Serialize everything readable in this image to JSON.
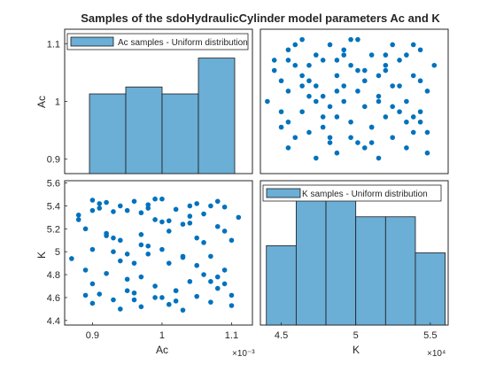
{
  "title": "Samples of the sdoHydraulicCylinder model parameters Ac and K",
  "colors": {
    "bar_fill": "#6baed6",
    "bar_edge": "#1a1a1a",
    "marker": "#0072bd",
    "axes": "#262626",
    "background": "#ffffff"
  },
  "chart_data": [
    {
      "id": "hist-ac",
      "type": "bar",
      "title": "",
      "xlabel": "",
      "ylabel": "Ac",
      "bin_edges": [
        0.0009,
        0.00095,
        0.001,
        0.00105,
        0.0011
      ],
      "values": [
        1.013,
        1.025,
        1.013,
        1.075
      ],
      "ylim": [
        0.875,
        1.125
      ],
      "yticks": [
        "0.9",
        "1",
        "1.1"
      ],
      "legend": "Ac samples - Uniform distribution",
      "legend_position": "top-left",
      "grid": false
    },
    {
      "id": "scatter-ac-k",
      "type": "scatter",
      "title": "",
      "xlabel": "",
      "ylabel": "",
      "xlim": [
        0.00086,
        0.00113
      ],
      "ylim": [
        0.86,
        1.14
      ],
      "grid": false,
      "x": [
        0.00088,
        0.00089,
        0.0009,
        0.0009,
        0.0009,
        0.00091,
        0.00092,
        0.00092,
        0.00093,
        0.00093,
        0.00094,
        0.00094,
        0.00095,
        0.00095,
        0.00096,
        0.00096,
        0.00097,
        0.00097,
        0.00097,
        0.00098,
        0.00098,
        0.00099,
        0.00099,
        0.001,
        0.001,
        0.00101,
        0.00101,
        0.00102,
        0.00102,
        0.00103,
        0.00103,
        0.00104,
        0.00104,
        0.00105,
        0.00105,
        0.00106,
        0.00106,
        0.00107,
        0.00107,
        0.00108,
        0.00108,
        0.00109,
        0.00109,
        0.0011,
        0.0011,
        0.00111,
        0.00087,
        0.00089,
        0.00091,
        0.00093,
        0.00095,
        0.00097,
        0.00099,
        0.00101,
        0.00103,
        0.00105,
        0.00107,
        0.00109,
        0.00088,
        0.0009,
        0.00092,
        0.00094,
        0.00096,
        0.00098,
        0.001,
        0.00102,
        0.00104,
        0.00106,
        0.00108,
        0.0011,
        0.00089,
        0.00091,
        0.00093,
        0.00095,
        0.00097,
        0.00099,
        0.00101,
        0.00103,
        0.00105,
        0.00107,
        0.00109,
        0.00092,
        0.00096,
        0.001,
        0.00104,
        0.00108,
        0.0009,
        0.00094,
        0.00098,
        0.00102
      ],
      "y": [
        1.06,
        0.95,
        1.1,
        1.02,
        0.91,
        1.07,
        0.98,
        1.12,
        0.94,
        1.04,
        1.09,
        0.89,
        1.01,
        1.08,
        0.93,
        1.11,
        0.97,
        1.05,
        0.9,
        1.03,
        1.1,
        0.96,
        1.07,
        0.92,
        1.12,
        0.99,
        1.04,
        0.95,
        1.09,
        1.01,
        0.89,
        1.06,
        0.97,
        1.11,
        0.93,
        1.03,
        1.08,
        0.91,
        1.0,
        1.05,
        0.94,
        1.1,
        0.98,
        1.02,
        0.9,
        1.07,
        1.0,
        1.04,
        0.93,
        1.07,
        0.97,
        1.02,
        1.12,
        0.91,
        1.05,
        0.99,
        1.09,
        0.96,
        1.08,
        0.96,
        1.05,
        1.0,
        0.92,
        1.09,
        1.02,
        0.95,
        1.07,
        0.98,
        1.11,
        0.94,
        0.98,
        1.11,
        1.01,
        0.95,
        1.08,
        0.93,
        1.06,
        1.0,
        1.03,
        0.96,
        1.04,
        1.03,
        0.99,
        1.06,
        1.09,
        0.97,
        1.08,
        1.03,
        1.0,
        0.92
      ]
    },
    {
      "id": "scatter-k-ac",
      "type": "scatter",
      "title": "",
      "xlabel": "Ac",
      "ylabel": "K",
      "x_exponent": "×10⁻³",
      "xlim": [
        0.00086,
        0.00113
      ],
      "ylim": [
        4.36,
        5.62
      ],
      "xticks": [
        0.0009,
        0.001,
        0.0011
      ],
      "xticklabels": [
        "0.9",
        "1",
        "1.1"
      ],
      "yticks": [
        4.4,
        4.6,
        4.8,
        5,
        5.2,
        5.4,
        5.6
      ],
      "yticklabels": [
        "4.4",
        "4.6",
        "4.8",
        "5",
        "5.2",
        "5.4",
        "5.6"
      ],
      "grid": false,
      "x": [
        0.00088,
        0.00089,
        0.0009,
        0.0009,
        0.0009,
        0.00091,
        0.00092,
        0.00092,
        0.00093,
        0.00093,
        0.00094,
        0.00094,
        0.00095,
        0.00095,
        0.00096,
        0.00096,
        0.00097,
        0.00097,
        0.00097,
        0.00098,
        0.00098,
        0.00099,
        0.00099,
        0.001,
        0.001,
        0.00101,
        0.00101,
        0.00102,
        0.00102,
        0.00103,
        0.00103,
        0.00104,
        0.00104,
        0.00105,
        0.00105,
        0.00106,
        0.00106,
        0.00107,
        0.00107,
        0.00108,
        0.00108,
        0.00109,
        0.00109,
        0.0011,
        0.0011,
        0.00111,
        0.00087,
        0.00089,
        0.00091,
        0.00093,
        0.00095,
        0.00097,
        0.00099,
        0.00101,
        0.00103,
        0.00105,
        0.00107,
        0.00109,
        0.00088,
        0.0009,
        0.00092,
        0.00094,
        0.00096,
        0.00098,
        0.001,
        0.00102,
        0.00104,
        0.00106,
        0.00108,
        0.0011,
        0.00089,
        0.00091,
        0.00093,
        0.00095,
        0.00097,
        0.00099,
        0.00101,
        0.00103,
        0.00105,
        0.00107,
        0.00109,
        0.00092,
        0.00096,
        0.001,
        0.00104,
        0.00108,
        0.0009,
        0.00094,
        0.00098,
        0.00102
      ],
      "y": [
        5.32,
        4.62,
        5.45,
        5.02,
        4.55,
        5.38,
        4.81,
        5.43,
        4.58,
        5.12,
        5.4,
        4.5,
        4.98,
        5.36,
        4.64,
        5.44,
        4.78,
        5.15,
        4.52,
        5.05,
        5.41,
        4.7,
        5.28,
        4.6,
        5.46,
        4.9,
        5.18,
        4.66,
        5.37,
        4.95,
        4.49,
        5.25,
        4.74,
        5.42,
        4.61,
        5.08,
        5.33,
        4.56,
        4.96,
        5.22,
        4.68,
        5.39,
        4.84,
        5.1,
        4.53,
        5.3,
        4.94,
        5.2,
        4.63,
        5.35,
        4.76,
        5.06,
        5.46,
        4.54,
        5.24,
        4.88,
        5.4,
        4.72,
        5.28,
        4.72,
        5.14,
        4.92,
        4.58,
        5.38,
        5.02,
        4.66,
        5.31,
        4.8,
        5.44,
        4.62,
        4.84,
        5.42,
        5.0,
        4.66,
        5.34,
        4.6,
        5.27,
        4.96,
        5.12,
        4.74,
        5.18,
        5.16,
        4.9,
        5.26,
        5.4,
        4.78,
        5.36,
        5.1,
        4.98,
        4.57
      ]
    },
    {
      "id": "hist-k",
      "type": "bar",
      "title": "",
      "xlabel": "K",
      "ylabel": "",
      "x_exponent": "×10⁴",
      "bin_edges": [
        4.4,
        4.6,
        4.8,
        5.0,
        5.2,
        5.4,
        5.6
      ],
      "values": [
        11,
        19,
        18,
        15,
        15,
        10
      ],
      "ylim": [
        0,
        20
      ],
      "xlim": [
        4.36,
        5.62
      ],
      "xticks": [
        4.5,
        5,
        5.5
      ],
      "xticklabels": [
        "4.5",
        "5",
        "5.5"
      ],
      "legend": "K samples - Uniform distribution",
      "legend_position": "top-left",
      "grid": false
    }
  ]
}
